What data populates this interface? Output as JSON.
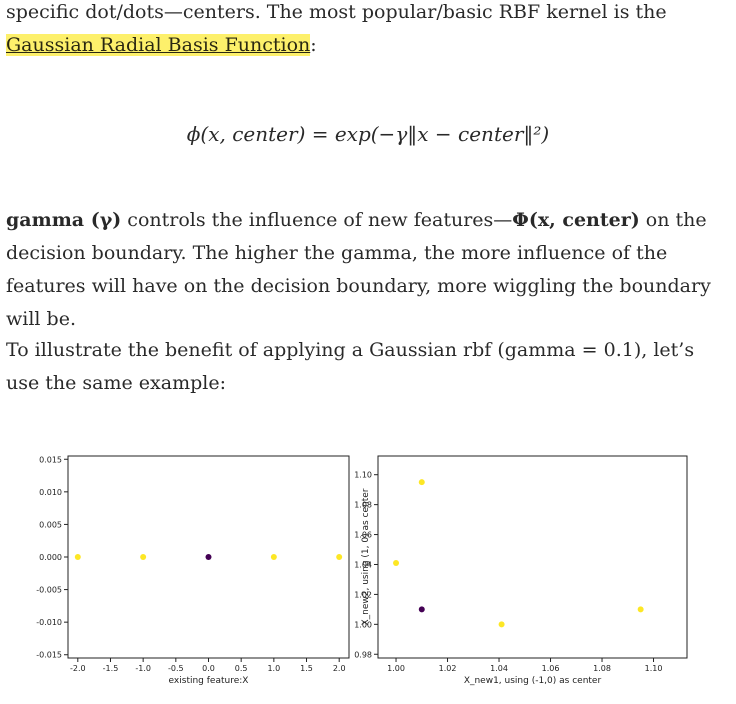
{
  "para1": {
    "line1": "specific dot/dots—centers. The most popular/basic RBF kernel is the",
    "link": "Gaussian Radial Basis Function",
    "tail": ":"
  },
  "formula": "ϕ(x, center) = exp(−γ‖x − center‖²)",
  "para2": {
    "bold1": "gamma (γ)",
    "t1": " controls the influence of new features—",
    "bold2": "Φ(x, center)",
    "t2": " on the decision boundary. The higher the gamma, the more influence of the features will have on the decision boundary, more wiggling the boundary will be."
  },
  "para3": "To illustrate the benefit of applying a Gaussian rbf (gamma = 0.1), let’s use the same example:",
  "colors": {
    "yellow": "#fde725",
    "purple": "#440154",
    "highlight": "#fdf06b"
  },
  "chart_data": [
    {
      "type": "scatter",
      "xlabel": "existing feature:X",
      "ylabel": "",
      "xlim": [
        -2.15,
        2.15
      ],
      "ylim": [
        -0.0155,
        0.0155
      ],
      "xticks": [
        "-2.0",
        "-1.5",
        "-1.0",
        "-0.5",
        "0.0",
        "0.5",
        "1.0",
        "1.5",
        "2.0"
      ],
      "xtick_values": [
        -2.0,
        -1.5,
        -1.0,
        -0.5,
        0.0,
        0.5,
        1.0,
        1.5,
        2.0
      ],
      "yticks": [
        "0.015",
        "0.010",
        "0.005",
        "0.000",
        "-0.005",
        "-0.010",
        "-0.015"
      ],
      "ytick_values": [
        0.015,
        0.01,
        0.005,
        0.0,
        -0.005,
        -0.01,
        -0.015
      ],
      "points": [
        {
          "x": -2,
          "y": 0,
          "class": "yellow"
        },
        {
          "x": -1,
          "y": 0,
          "class": "yellow"
        },
        {
          "x": 0,
          "y": 0,
          "class": "purple"
        },
        {
          "x": 1,
          "y": 0,
          "class": "yellow"
        },
        {
          "x": 2,
          "y": 0,
          "class": "yellow"
        }
      ]
    },
    {
      "type": "scatter",
      "xlabel": "X_new1, using (-1,0) as center",
      "ylabel": "X_new2, using (1, 0) as center",
      "xlim": [
        0.993,
        1.113
      ],
      "ylim": [
        0.9775,
        1.1125
      ],
      "xticks": [
        "1.00",
        "1.02",
        "1.04",
        "1.06",
        "1.08",
        "1.10"
      ],
      "xtick_values": [
        1.0,
        1.02,
        1.04,
        1.06,
        1.08,
        1.1
      ],
      "yticks": [
        "1.10",
        "1.08",
        "1.06",
        "1.04",
        "1.02",
        "1.00",
        "0.98"
      ],
      "ytick_values": [
        1.1,
        1.08,
        1.06,
        1.04,
        1.02,
        1.0,
        0.98
      ],
      "points": [
        {
          "x": 1.0,
          "y": 1.041,
          "class": "yellow"
        },
        {
          "x": 1.01,
          "y": 1.095,
          "class": "yellow"
        },
        {
          "x": 1.01,
          "y": 1.01,
          "class": "purple"
        },
        {
          "x": 1.041,
          "y": 1.0,
          "class": "yellow"
        },
        {
          "x": 1.095,
          "y": 1.01,
          "class": "yellow"
        }
      ]
    }
  ]
}
